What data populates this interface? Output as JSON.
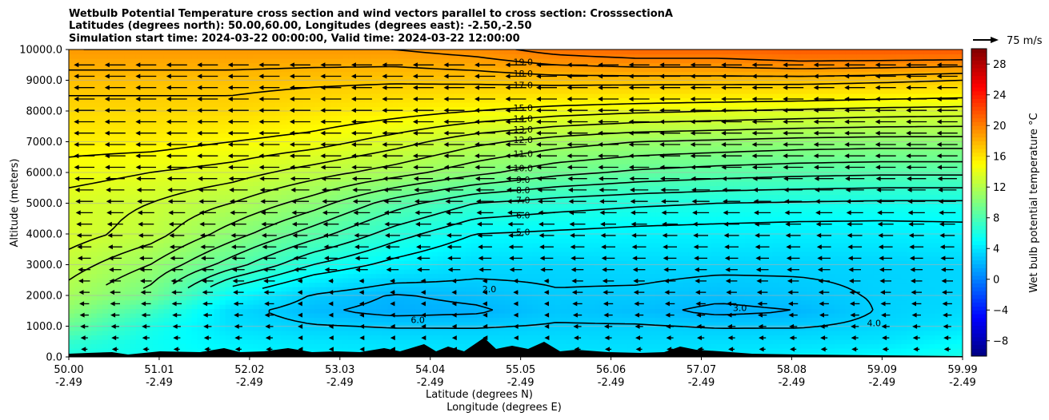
{
  "chart_data": {
    "type": "heatmap",
    "title_lines": [
      "Wetbulb Potential Temperature cross section and wind vectors parallel to cross section: CrosssectionA",
      "Latitudes (degrees north): 50.00,60.00, Longitudes (degrees east): -2.50,-2.50",
      "Simulation start time: 2024-03-22 00:00:00, Valid time: 2024-03-22 12:00:00"
    ],
    "xlabel": "Latitude (degrees N)",
    "xlabel2": "Longitude (degrees E)",
    "ylabel": "Altitude (meters)",
    "xlim": [
      50.0,
      59.99
    ],
    "ylim": [
      0,
      10000
    ],
    "x_ticks": [
      {
        "lat": "50.00",
        "lon": "-2.49"
      },
      {
        "lat": "51.01",
        "lon": "-2.49"
      },
      {
        "lat": "52.02",
        "lon": "-2.49"
      },
      {
        "lat": "53.03",
        "lon": "-2.49"
      },
      {
        "lat": "54.04",
        "lon": "-2.49"
      },
      {
        "lat": "55.05",
        "lon": "-2.49"
      },
      {
        "lat": "56.06",
        "lon": "-2.49"
      },
      {
        "lat": "57.07",
        "lon": "-2.49"
      },
      {
        "lat": "58.08",
        "lon": "-2.49"
      },
      {
        "lat": "59.09",
        "lon": "-2.49"
      },
      {
        "lat": "59.99",
        "lon": "-2.49"
      }
    ],
    "y_ticks": [
      "0.0",
      "1000.0",
      "2000.0",
      "3000.0",
      "4000.0",
      "5000.0",
      "6000.0",
      "7000.0",
      "8000.0",
      "9000.0",
      "10000.0"
    ],
    "y_tick_values": [
      0,
      1000,
      2000,
      3000,
      4000,
      5000,
      6000,
      7000,
      8000,
      9000,
      10000
    ],
    "grid": true,
    "colorbar": {
      "label": "Wet bulb potential temperature $^\\circ$C",
      "label_display": "Wet bulb potential temperature °C",
      "range": [
        -10,
        30
      ],
      "ticks": [
        "−8",
        "−4",
        "0",
        "4",
        "8",
        "12",
        "16",
        "20",
        "24",
        "28"
      ],
      "tick_values": [
        -8,
        -4,
        0,
        4,
        8,
        12,
        16,
        20,
        24,
        28
      ],
      "colormap": "jet"
    },
    "quiver_key": "75 m/s",
    "contour_levels": [
      {
        "value": 3,
        "label": "3.0"
      },
      {
        "value": 5,
        "label": "5.0"
      },
      {
        "value": 6,
        "label": "6.0"
      },
      {
        "value": 7,
        "label": "7.0"
      },
      {
        "value": 8,
        "label": "8.0"
      },
      {
        "value": 9,
        "label": "9.0"
      },
      {
        "value": 10,
        "label": "10.0"
      },
      {
        "value": 11,
        "label": "11.0"
      },
      {
        "value": 12,
        "label": "12.0"
      },
      {
        "value": 13,
        "label": "13.0"
      },
      {
        "value": 14,
        "label": "14.0"
      },
      {
        "value": 15,
        "label": "15.0"
      },
      {
        "value": 17,
        "label": "17.0"
      },
      {
        "value": 18,
        "label": "18.0"
      },
      {
        "value": 19,
        "label": "19.0"
      },
      {
        "value": 20,
        "label": "20.0"
      }
    ],
    "low_contour_labels": [
      "2.0",
      "3.0",
      "4.0",
      "6.0"
    ],
    "field_profiles": [
      {
        "alt": 0,
        "values": [
          6.0,
          5.5,
          5.0,
          4.5,
          4.2,
          4.0,
          4.0,
          4.0,
          4.2,
          4.5,
          5.0,
          6.0
        ]
      },
      {
        "alt": 500,
        "values": [
          7.0,
          5.5,
          4.5,
          4.0,
          3.8,
          3.7,
          3.7,
          3.6,
          3.7,
          3.8,
          4.0,
          5.0
        ]
      },
      {
        "alt": 1000,
        "values": [
          9.0,
          6.0,
          3.8,
          3.2,
          3.0,
          3.0,
          3.2,
          3.2,
          3.0,
          3.0,
          3.4,
          4.0
        ]
      },
      {
        "alt": 1500,
        "values": [
          10.5,
          7.5,
          3.6,
          2.4,
          1.8,
          2.0,
          2.8,
          2.5,
          1.9,
          2.2,
          3.2,
          3.6
        ]
      },
      {
        "alt": 2000,
        "values": [
          11.5,
          9.5,
          5.0,
          3.0,
          2.1,
          2.5,
          3.0,
          2.9,
          2.5,
          2.8,
          3.2,
          3.4
        ]
      },
      {
        "alt": 3000,
        "values": [
          12.5,
          11.0,
          8.5,
          6.0,
          4.6,
          3.6,
          3.4,
          3.5,
          3.4,
          3.3,
          3.3,
          3.4
        ]
      },
      {
        "alt": 4000,
        "values": [
          13.5,
          12.5,
          10.5,
          8.5,
          6.5,
          5.0,
          4.8,
          4.6,
          4.5,
          4.4,
          4.4,
          4.5
        ]
      },
      {
        "alt": 5000,
        "values": [
          13.5,
          13.0,
          12.0,
          10.5,
          8.5,
          7.0,
          6.5,
          6.2,
          6.0,
          5.9,
          5.8,
          5.8
        ]
      },
      {
        "alt": 6000,
        "values": [
          14.5,
          14.0,
          13.5,
          12.5,
          11.5,
          10.3,
          9.3,
          8.8,
          8.5,
          8.3,
          8.2,
          8.2
        ]
      },
      {
        "alt": 7000,
        "values": [
          15.5,
          15.5,
          15.0,
          14.5,
          13.5,
          12.3,
          11.5,
          11.0,
          10.8,
          10.6,
          10.5,
          10.5
        ]
      },
      {
        "alt": 8000,
        "values": [
          16.5,
          16.5,
          16.5,
          16.0,
          15.5,
          15.0,
          14.5,
          14.2,
          14.0,
          13.8,
          13.6,
          13.5
        ]
      },
      {
        "alt": 9000,
        "values": [
          17.5,
          17.5,
          17.5,
          17.3,
          17.2,
          17.3,
          17.5,
          17.5,
          17.5,
          17.5,
          17.3,
          17.0
        ]
      },
      {
        "alt": 10000,
        "values": [
          19.0,
          19.0,
          19.0,
          19.0,
          19.0,
          19.5,
          20.5,
          21.0,
          21.0,
          21.5,
          21.5,
          21.5
        ]
      }
    ]
  }
}
